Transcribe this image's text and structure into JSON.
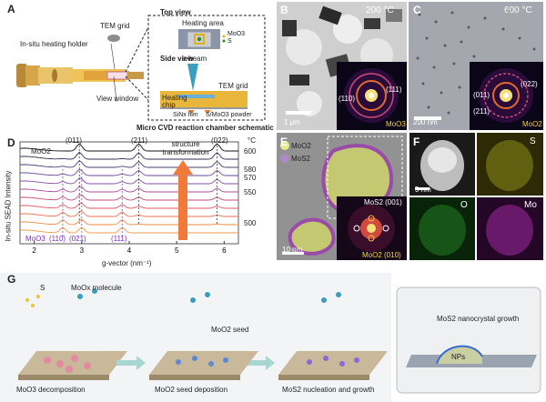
{
  "panelA": {
    "letter": "A",
    "holder_label": "In-situ heating holder",
    "grid_label": "TEM grid",
    "window_label": "View window",
    "top_view_label": "Top view",
    "heating_area_label": "Heating area",
    "side_view_label": "Side view",
    "ebeam_label": "e-beam",
    "tem_grid_label": "TEM grid",
    "heating_chip_label": "Heating chip",
    "sinx_label": "SiNx film",
    "powder_label": "S/MoO3 powder",
    "legend_moo3": "MoO3",
    "legend_s": "S",
    "caption": "Micro CVD reaction chamber schematic"
  },
  "panelB": {
    "letter": "B",
    "temp": "200 °C",
    "phase": "MoO3",
    "ring1": "(111)",
    "ring2": "(110)",
    "scale": "1 μm"
  },
  "panelC": {
    "letter": "C",
    "temp": "600 °C",
    "phase": "MoO2",
    "ring1": "(011)",
    "ring2": "(211)",
    "ring3": "(022)",
    "scale": "200 nm"
  },
  "panelD": {
    "letter": "D",
    "ylabel": "In-situ SEAD Intensity",
    "xlabel": "g-vector (nm⁻¹)",
    "moo2_label": "MoO2",
    "moo3_label": "MoO3",
    "peak_011": "(011)",
    "peak_211": "(211)",
    "peak_022": "(022)",
    "peak_110": "(110)",
    "peak_021": "(021)",
    "peak_111": "(111)",
    "arrow_label": "structure transformation",
    "temp_unit": "°C"
  },
  "panelE": {
    "letter": "E",
    "leg_moo2": "MoO2",
    "leg_mos2": "MoS2",
    "fft1": "MoS2 (001)",
    "fft2": "MoO2 (010)",
    "scale": "10 nm"
  },
  "panelF": {
    "letter": "F",
    "s": "S",
    "o": "O",
    "mo": "Mo",
    "scale": "5 nm"
  },
  "panelG": {
    "letter": "G",
    "s_label": "S",
    "moox_label": "MoOx molecule",
    "moo2seed_label": "MoO2 seed",
    "step1": "MoO3 decomposition",
    "step2": "MoO2 seed deposition",
    "step3": "MoS2 nucleation and growth",
    "inset_title": "MoS2 nanocrystal growth",
    "nps_label": "NPs"
  },
  "chart_data": {
    "type": "line",
    "title": "",
    "xlabel": "g-vector (nm⁻¹)",
    "ylabel": "In-situ SEAD Intensity",
    "xlim": [
      1.7,
      6.3
    ],
    "xticks": [
      2,
      3,
      4,
      5,
      6
    ],
    "temperatures": [
      "600",
      "580",
      "570",
      "550",
      "500"
    ],
    "peaks_moo2": [
      {
        "label": "(011)",
        "g": 2.95
      },
      {
        "label": "(211)",
        "g": 4.2
      },
      {
        "label": "(022)",
        "g": 5.85
      }
    ],
    "peaks_moo3": [
      {
        "label": "(110)",
        "g": 2.6
      },
      {
        "label": "(021)",
        "g": 3.0
      },
      {
        "label": "(111)",
        "g": 3.85
      }
    ],
    "series": [
      {
        "color": "#111111"
      },
      {
        "color": "#3a2a55"
      },
      {
        "color": "#4d3a7a"
      },
      {
        "color": "#6a4a9a"
      },
      {
        "color": "#8a4da8"
      },
      {
        "color": "#b04a9a"
      },
      {
        "color": "#cc4a7a"
      },
      {
        "color": "#dd5a60"
      },
      {
        "color": "#e8704a"
      },
      {
        "color": "#ef8a40"
      },
      {
        "color": "#f39a48"
      }
    ]
  }
}
